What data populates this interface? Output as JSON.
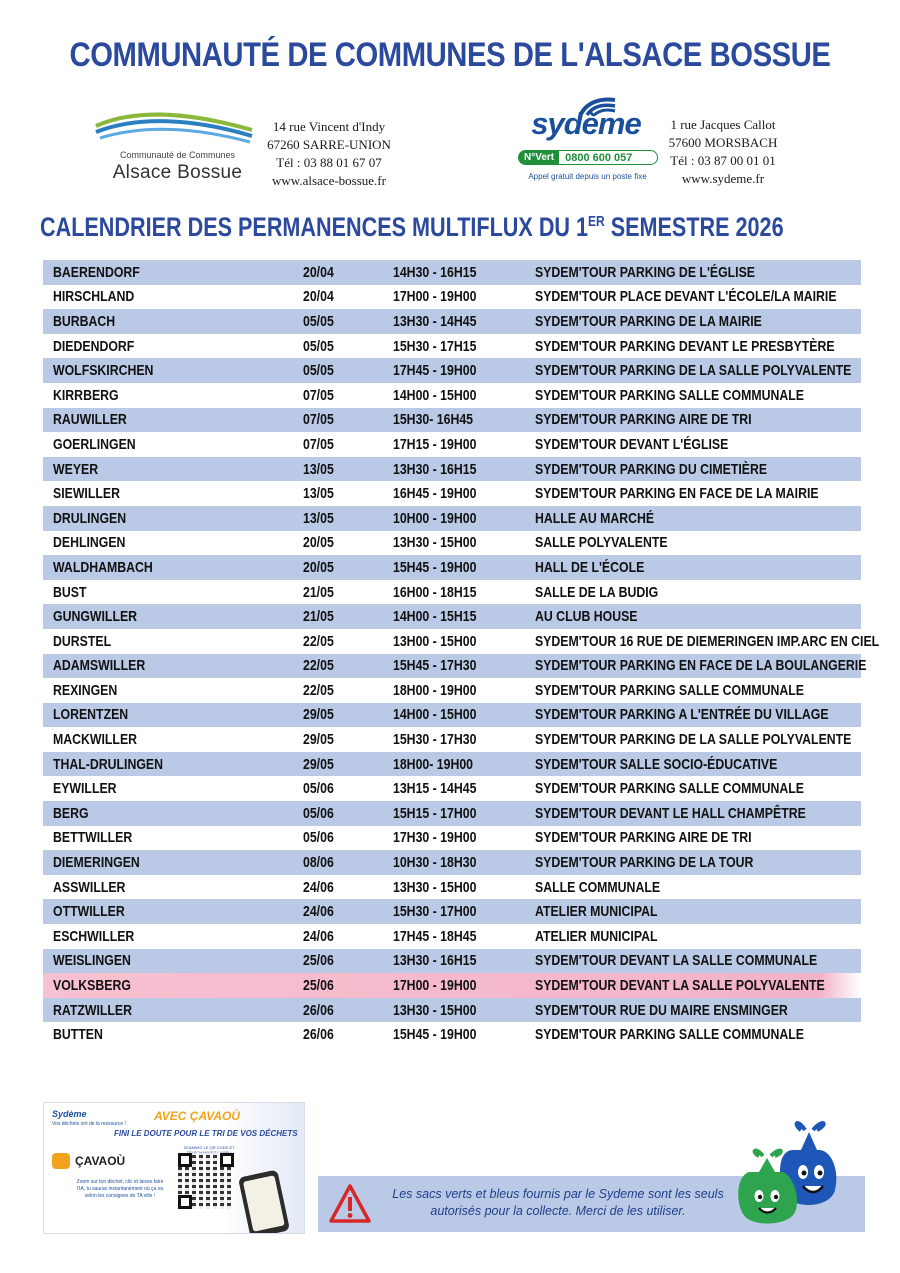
{
  "header": {
    "title": "COMMUNAUTÉ DE COMMUNES DE L'ALSACE BOSSUE",
    "ccab": {
      "logo_sub": "Communauté de Communes",
      "logo_name": "Alsace Bossue",
      "address_line1": "14 rue Vincent d'Indy",
      "address_line2": "67260 SARRE-UNION",
      "phone": "Tél : 03 88 01 67 07",
      "website": "www.alsace-bossue.fr"
    },
    "sydeme": {
      "logo_word": "sydème",
      "numero_vert_tag": "N°Vert",
      "numero_vert": "0800 600 057",
      "appel": "Appel gratuit depuis un poste fixe",
      "address_line1": "1 rue Jacques Callot",
      "address_line2": "57600 MORSBACH",
      "phone": "Tél : 03 87 00 01 01",
      "website": "www.sydeme.fr"
    }
  },
  "section": {
    "title_main": "CALENDRIER DES PERMANENCES MULTIFLUX DU 1",
    "title_sup": "ER",
    "title_end": " SEMESTRE 2026"
  },
  "rows": [
    {
      "town": "BAERENDORF",
      "date": "20/04",
      "time": "14H30 - 16H15",
      "place": "SYDEM'TOUR PARKING DE L'ÉGLISE"
    },
    {
      "town": "HIRSCHLAND",
      "date": "20/04",
      "time": "17H00 - 19H00",
      "place": "SYDEM'TOUR PLACE DEVANT L'ÉCOLE/LA MAIRIE"
    },
    {
      "town": "BURBACH",
      "date": "05/05",
      "time": "13H30 - 14H45",
      "place": "SYDEM'TOUR PARKING DE LA MAIRIE"
    },
    {
      "town": "DIEDENDORF",
      "date": "05/05",
      "time": "15H30 - 17H15",
      "place": "SYDEM'TOUR PARKING DEVANT LE PRESBYTÈRE"
    },
    {
      "town": "WOLFSKIRCHEN",
      "date": "05/05",
      "time": "17H45 - 19H00",
      "place": "SYDEM'TOUR PARKING DE LA SALLE POLYVALENTE"
    },
    {
      "town": "KIRRBERG",
      "date": "07/05",
      "time": "14H00 - 15H00",
      "place": "SYDEM'TOUR PARKING SALLE COMMUNALE"
    },
    {
      "town": "RAUWILLER",
      "date": "07/05",
      "time": "15H30- 16H45",
      "place": "SYDEM'TOUR PARKING AIRE DE TRI"
    },
    {
      "town": "GOERLINGEN",
      "date": "07/05",
      "time": "17H15 - 19H00",
      "place": "SYDEM'TOUR DEVANT L'ÉGLISE"
    },
    {
      "town": "WEYER",
      "date": "13/05",
      "time": "13H30 - 16H15",
      "place": "SYDEM'TOUR PARKING DU CIMETIÈRE"
    },
    {
      "town": "SIEWILLER",
      "date": "13/05",
      "time": "16H45 - 19H00",
      "place": "SYDEM'TOUR PARKING EN FACE DE LA MAIRIE"
    },
    {
      "town": "DRULINGEN",
      "date": "13/05",
      "time": "10H00 - 19H00",
      "place": "HALLE AU MARCHÉ"
    },
    {
      "town": "DEHLINGEN",
      "date": "20/05",
      "time": "13H30 - 15H00",
      "place": "SALLE POLYVALENTE"
    },
    {
      "town": "WALDHAMBACH",
      "date": "20/05",
      "time": "15H45 - 19H00",
      "place": "HALL DE L'ÉCOLE"
    },
    {
      "town": "BUST",
      "date": "21/05",
      "time": "16H00 - 18H15",
      "place": "SALLE DE LA BUDIG"
    },
    {
      "town": "GUNGWILLER",
      "date": "21/05",
      "time": "14H00 - 15H15",
      "place": "AU CLUB HOUSE"
    },
    {
      "town": "DURSTEL",
      "date": "22/05",
      "time": "13H00 - 15H00",
      "place": "SYDEM'TOUR 16 RUE DE DIEMERINGEN IMP.ARC EN CIEL"
    },
    {
      "town": "ADAMSWILLER",
      "date": "22/05",
      "time": "15H45 - 17H30",
      "place": "SYDEM'TOUR PARKING EN FACE DE LA BOULANGERIE"
    },
    {
      "town": "REXINGEN",
      "date": "22/05",
      "time": "18H00 - 19H00",
      "place": "SYDEM'TOUR PARKING SALLE COMMUNALE"
    },
    {
      "town": "LORENTZEN",
      "date": "29/05",
      "time": "14H00 - 15H00",
      "place": "SYDEM'TOUR PARKING A L'ENTRÉE DU VILLAGE"
    },
    {
      "town": "MACKWILLER",
      "date": "29/05",
      "time": "15H30 - 17H30",
      "place": "SYDEM'TOUR PARKING DE LA SALLE POLYVALENTE"
    },
    {
      "town": "THAL-DRULINGEN",
      "date": "29/05",
      "time": "18H00- 19H00",
      "place": "SYDEM'TOUR SALLE SOCIO-ÉDUCATIVE"
    },
    {
      "town": "EYWILLER",
      "date": "05/06",
      "time": "13H15 - 14H45",
      "place": "SYDEM'TOUR PARKING SALLE COMMUNALE"
    },
    {
      "town": "BERG",
      "date": "05/06",
      "time": "15H15 - 17H00",
      "place": "SYDEM'TOUR DEVANT LE HALL CHAMPÊTRE"
    },
    {
      "town": "BETTWILLER",
      "date": "05/06",
      "time": "17H30 - 19H00",
      "place": "SYDEM'TOUR PARKING AIRE DE TRI"
    },
    {
      "town": "DIEMERINGEN",
      "date": "08/06",
      "time": "10H30 - 18H30",
      "place": "SYDEM'TOUR PARKING DE LA TOUR"
    },
    {
      "town": "ASSWILLER",
      "date": "24/06",
      "time": "13H30 - 15H00",
      "place": "SALLE COMMUNALE"
    },
    {
      "town": "OTTWILLER",
      "date": "24/06",
      "time": "15H30 - 17H00",
      "place": "ATELIER MUNICIPAL"
    },
    {
      "town": "ESCHWILLER",
      "date": "24/06",
      "time": "17H45 - 18H45",
      "place": "ATELIER MUNICIPAL"
    },
    {
      "town": "WEISLINGEN",
      "date": "25/06",
      "time": "13H30 - 16H15",
      "place": "SYDEM'TOUR DEVANT LA SALLE COMMUNALE"
    },
    {
      "town": "VOLKSBERG",
      "date": "25/06",
      "time": "17H00 - 19H00",
      "place": "SYDEM'TOUR DEVANT LA SALLE POLYVALENTE"
    },
    {
      "town": "RATZWILLER",
      "date": "26/06",
      "time": "13H30 - 15H00",
      "place": "SYDEM'TOUR RUE DU MAIRE ENSMINGER"
    },
    {
      "town": "BUTTEN",
      "date": "26/06",
      "time": "15H45 - 19H00",
      "place": "SYDEM'TOUR PARKING SALLE COMMUNALE"
    }
  ],
  "highlighted_row": "VOLKSBERG",
  "footer": {
    "cavaou": {
      "sydeme_mini": "Sydème",
      "sydeme_mini_sub": "Vos déchets ont de la ressource !",
      "headline": "AVEC ÇAVAOÙ",
      "subline": "FINI LE DOUTE POUR LE TRI DE VOS DÉCHETS",
      "brand": "ÇAVAOÙ",
      "qr_label": "SCANNEZ LE QR CODE ET TÉLÉCHARGEZ L'APPLI",
      "note": "Zoom sur ton déchet, clic et laisse faire l'IA, tu sauras instantanément où ça va selon les consignes de TA ville !"
    },
    "notice": "Les sacs verts et bleus fournis par le Sydeme sont les seuls autorisés pour la collecte. Merci de les utiliser."
  },
  "colors": {
    "title_blue": "#2b4a9e",
    "row_shade": "#b9c9e6",
    "highlight_pink": "#f3b3c7",
    "sydeme_blue": "#1a4f9c",
    "numero_vert_green": "#1f8f3a",
    "cavaou_orange": "#f2a31b"
  }
}
